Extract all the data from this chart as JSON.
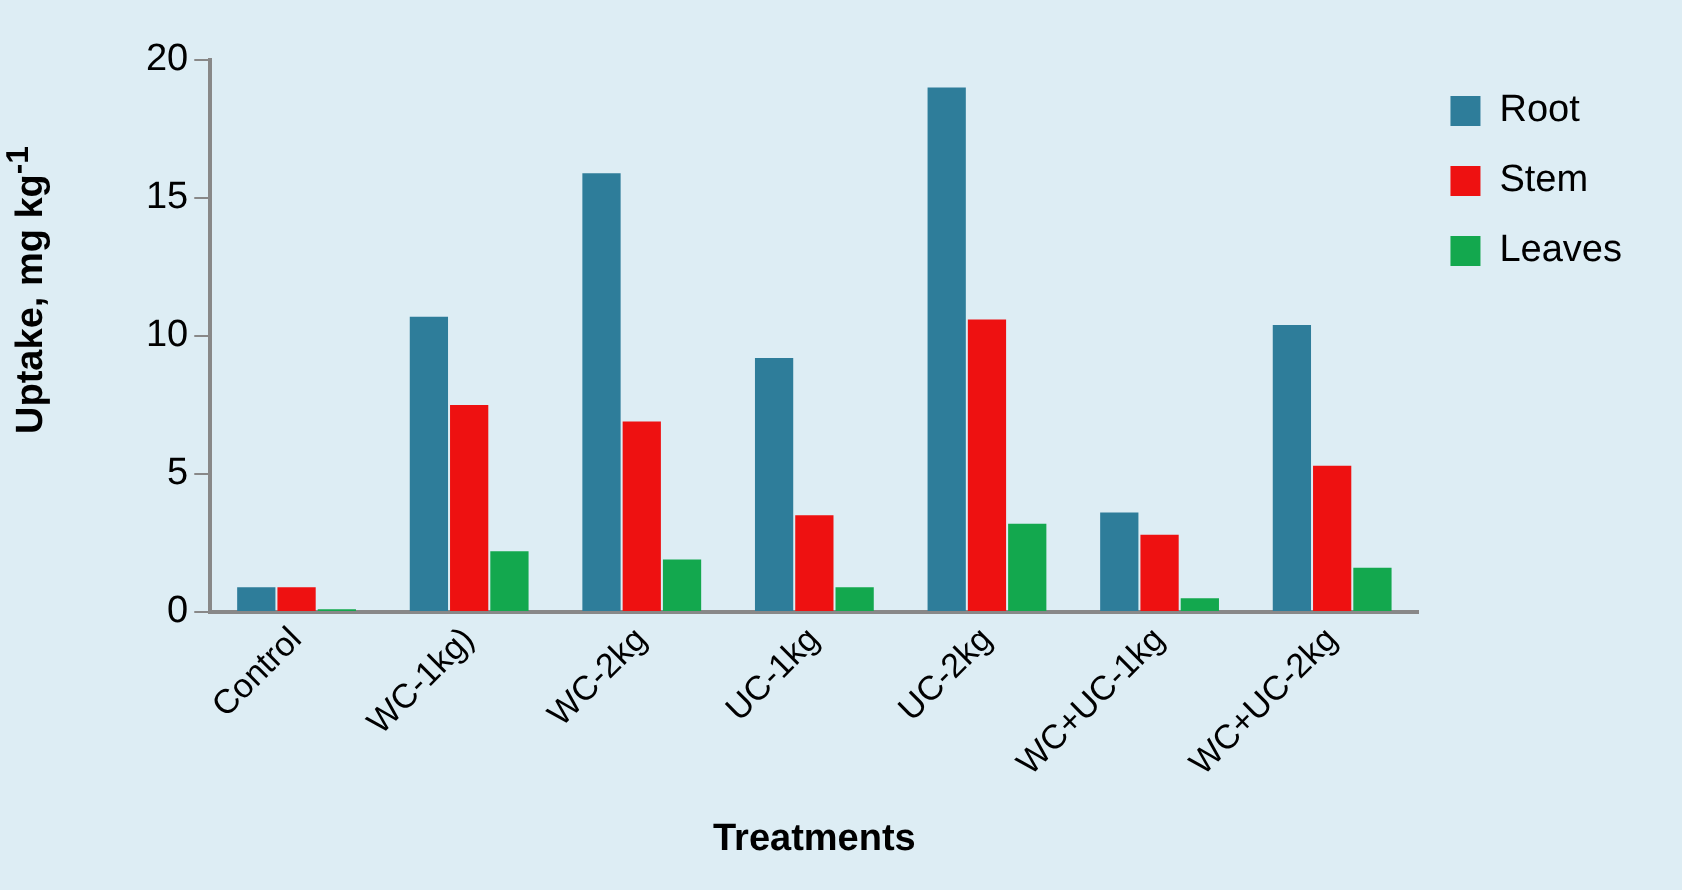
{
  "chart_data": {
    "type": "bar",
    "xlabel": "Treatments",
    "ylabel": "Uptake, mg kg$^{-1}$",
    "categories": [
      "Control",
      "WC-1kg)",
      "WC-2kg",
      "UC-1kg",
      "UC-2kg",
      "WC+UC-1kg",
      "WC+UC-2kg"
    ],
    "series": [
      {
        "name": "Root",
        "color": "#2e7d9a",
        "values": [
          0.9,
          10.7,
          15.9,
          9.2,
          19.0,
          3.6,
          10.4
        ]
      },
      {
        "name": "Stem",
        "color": "#ee1111",
        "values": [
          0.9,
          7.5,
          6.9,
          3.5,
          10.6,
          2.8,
          5.3
        ]
      },
      {
        "name": "Leaves",
        "color": "#13a84e",
        "values": [
          0.1,
          2.2,
          1.9,
          0.9,
          3.2,
          0.5,
          1.6
        ]
      }
    ],
    "ylim": [
      0,
      20
    ],
    "yticks": [
      0,
      5,
      10,
      15,
      20
    ],
    "grid": false,
    "legend": "top right"
  }
}
